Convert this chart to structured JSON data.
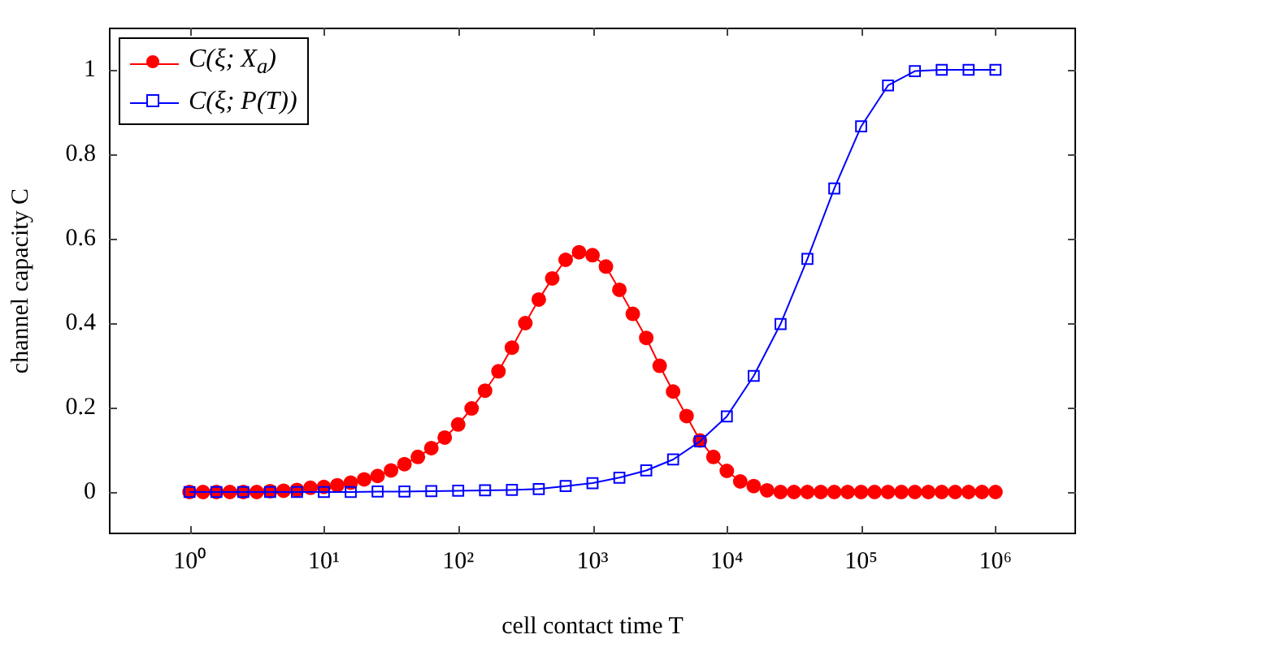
{
  "chart_data": {
    "type": "line",
    "xlabel": "cell contact time T",
    "ylabel": "channel capacity C",
    "log": "x",
    "legend": "top left",
    "xlim": [
      0.251,
      3981000
    ],
    "ylim": [
      -0.1,
      1.1
    ],
    "xticks": [
      {
        "value": 1,
        "label": "10⁰"
      },
      {
        "value": 10,
        "label": "10¹"
      },
      {
        "value": 100,
        "label": "10²"
      },
      {
        "value": 1000,
        "label": "10³"
      },
      {
        "value": 10000,
        "label": "10⁴"
      },
      {
        "value": 100000,
        "label": "10⁵"
      },
      {
        "value": 1000000,
        "label": "10⁶"
      }
    ],
    "yticks": [
      0,
      0.2,
      0.4,
      0.6,
      0.8,
      1
    ],
    "series": [
      {
        "name": "C(ξ; X$_{a}$)",
        "color": "#ff0000",
        "marker": "circle",
        "x": [
          1,
          1.259,
          1.585,
          1.995,
          2.512,
          3.162,
          3.981,
          5.012,
          6.31,
          7.943,
          10,
          12.59,
          15.85,
          19.95,
          25.12,
          31.62,
          39.81,
          50.12,
          63.1,
          79.43,
          100,
          125.9,
          158.5,
          199.5,
          251.2,
          316.2,
          398.1,
          501.2,
          631,
          794.3,
          1000,
          1259,
          1585,
          1995,
          2512,
          3162,
          3981,
          5012,
          6310,
          7943,
          10000,
          12590,
          15850,
          19950,
          25120,
          31620,
          39810,
          50120,
          63100,
          79430,
          100000,
          125900,
          158500,
          199500,
          251200,
          316200,
          398100,
          501200,
          631000,
          794300,
          1000000
        ],
        "values": [
          0,
          0,
          0,
          0,
          0,
          0,
          0.002,
          0.003,
          0.005,
          0.01,
          0.012,
          0.016,
          0.022,
          0.03,
          0.038,
          0.051,
          0.066,
          0.083,
          0.104,
          0.129,
          0.16,
          0.198,
          0.24,
          0.286,
          0.342,
          0.4,
          0.456,
          0.506,
          0.55,
          0.568,
          0.561,
          0.534,
          0.479,
          0.422,
          0.365,
          0.299,
          0.238,
          0.18,
          0.122,
          0.083,
          0.05,
          0.025,
          0.014,
          0.004,
          0,
          0,
          0,
          0,
          0,
          0,
          0,
          0,
          0,
          0,
          0,
          0,
          0,
          0,
          0,
          0,
          0
        ]
      },
      {
        "name": "C(ξ; P(T))",
        "color": "#0000ff",
        "marker": "square",
        "x": [
          1,
          1.585,
          2.512,
          3.981,
          6.31,
          10,
          15.85,
          25.12,
          39.81,
          63.1,
          100,
          158.5,
          251.2,
          398.1,
          631,
          1000,
          1585,
          2512,
          3981,
          6310,
          10000,
          15850,
          25120,
          39810,
          63100,
          100000,
          158500,
          251200,
          398100,
          631000,
          1000000
        ],
        "values": [
          0,
          0,
          0,
          0,
          0,
          0,
          0,
          0.001,
          0.001,
          0.002,
          0.003,
          0.004,
          0.005,
          0.007,
          0.014,
          0.021,
          0.034,
          0.051,
          0.077,
          0.12,
          0.179,
          0.275,
          0.398,
          0.552,
          0.719,
          0.866,
          0.963,
          0.997,
          1,
          1,
          1
        ]
      }
    ]
  }
}
